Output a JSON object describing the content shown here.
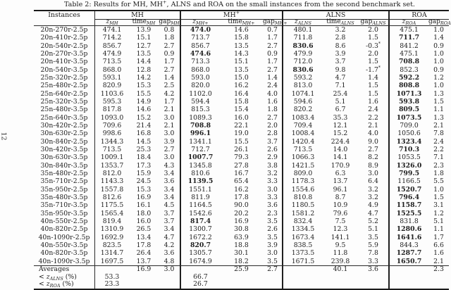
{
  "page": {
    "number": "12"
  },
  "caption": {
    "prefix": "Table 2: Results for MH, MH",
    "sup": "+",
    "suffix": ", ALNS and ROA on the small instances from the second benchmark set."
  },
  "colors": {
    "text": "#1d1d1d",
    "rule": "#2a2a2a",
    "background": "#fdfdfd"
  },
  "table": {
    "groups": [
      {
        "label": "Instances",
        "sup": ""
      },
      {
        "label": "MH",
        "sup": ""
      },
      {
        "label": "MH",
        "sup": "+"
      },
      {
        "label": "ALNS",
        "sup": ""
      },
      {
        "label": "ROA",
        "sup": ""
      }
    ],
    "column_ids": [
      "instance",
      "z-mh",
      "time-mh",
      "gap-mh",
      "z-mh-plus",
      "time-mh-plus",
      "gap-mh-plus",
      "z-alns",
      "time-alns",
      "gap-alns",
      "z-roa",
      "gap-roa"
    ],
    "columns": [
      {
        "base": "z",
        "sub": "MH",
        "italic": true
      },
      {
        "base": "time",
        "sub": "MH",
        "italic": false
      },
      {
        "base": "gap",
        "sub": "MH",
        "italic": false
      },
      {
        "base": "z",
        "sub": "MH+",
        "italic": true
      },
      {
        "base": "time",
        "sub": "MH+",
        "italic": false
      },
      {
        "base": "gap",
        "sub": "MH+",
        "italic": false
      },
      {
        "base": "z",
        "sub": "ALNS",
        "italic": true
      },
      {
        "base": "time",
        "sub": "ALNS",
        "italic": false
      },
      {
        "base": "gap",
        "sub": "ALNS",
        "italic": false
      },
      {
        "base": "z",
        "sub": "ROA",
        "italic": true
      },
      {
        "base": "gap",
        "sub": "ROA",
        "italic": false
      }
    ],
    "rows": [
      {
        "instance": "20n-270r-2.5p",
        "values": [
          "474.1",
          "13.9",
          "0.8",
          "474.0",
          "14.6",
          "0.7",
          "480.1",
          "3.2",
          "2.0",
          "475.1",
          "1.0"
        ],
        "bold": [
          3
        ]
      },
      {
        "instance": "20n-410r-2.5p",
        "values": [
          "714.2",
          "15.1",
          "1.8",
          "713.7",
          "15.8",
          "1.7",
          "711.8",
          "2.8",
          "1.5",
          "711.7",
          "1.4"
        ],
        "bold": [
          9
        ]
      },
      {
        "instance": "20n-540r-2.5p",
        "values": [
          "856.7",
          "12.7",
          "2.7",
          "856.7",
          "13.5",
          "2.7",
          "830.6",
          "8.6",
          "-0.3*",
          "841.2",
          "0.9"
        ],
        "bold": [
          6
        ]
      },
      {
        "instance": "20n-270r-3.5p",
        "values": [
          "474.9",
          "13.5",
          "0.9",
          "474.6",
          "14.3",
          "0.9",
          "479.9",
          "3.9",
          "2.0",
          "475.1",
          "1.0"
        ],
        "bold": [
          3
        ]
      },
      {
        "instance": "20n-410r-3.5p",
        "values": [
          "713.5",
          "14.4",
          "1.7",
          "713.3",
          "15.1",
          "1.7",
          "712.0",
          "3.7",
          "1.5",
          "708.8",
          "1.0"
        ],
        "bold": [
          9
        ]
      },
      {
        "instance": "20n-540r-3.5p",
        "values": [
          "868.0",
          "12.8",
          "2.7",
          "868.0",
          "13.5",
          "2.7",
          "830.6",
          "9.8",
          "-1.7*",
          "852.3",
          "0.9"
        ],
        "bold": [
          6
        ]
      },
      {
        "instance": "25n-320r-2.5p",
        "values": [
          "593.1",
          "14.2",
          "1.4",
          "593.0",
          "15.0",
          "1.4",
          "593.2",
          "4.7",
          "1.4",
          "592.2",
          "1.2"
        ],
        "bold": [
          9
        ]
      },
      {
        "instance": "25n-480r-2.5p",
        "values": [
          "820.9",
          "15.3",
          "2.5",
          "820.0",
          "16.2",
          "2.4",
          "813.0",
          "7.1",
          "1.5",
          "808.8",
          "1.0"
        ],
        "bold": [
          9
        ]
      },
      {
        "instance": "25n-640r-2.5p",
        "values": [
          "1103.6",
          "15.5",
          "4.2",
          "1102.0",
          "16.4",
          "4.0",
          "1074.1",
          "25.4",
          "1.5",
          "1071.3",
          "1.3"
        ],
        "bold": [
          9
        ]
      },
      {
        "instance": "25n-320r-3.5p",
        "values": [
          "595.3",
          "14.9",
          "1.7",
          "594.4",
          "15.8",
          "1.6",
          "594.6",
          "5.1",
          "1.6",
          "593.8",
          "1.5"
        ],
        "bold": [
          9
        ]
      },
      {
        "instance": "25n-480r-3.5p",
        "values": [
          "817.8",
          "14.6",
          "2.1",
          "815.3",
          "15.4",
          "1.8",
          "820.2",
          "6.7",
          "2.4",
          "809.5",
          "1.1"
        ],
        "bold": [
          9
        ]
      },
      {
        "instance": "25n-640r-3.5p",
        "values": [
          "1093.0",
          "15.2",
          "3.0",
          "1089.3",
          "16.0",
          "2.7",
          "1083.4",
          "35.3",
          "2.2",
          "1073.5",
          "1.3"
        ],
        "bold": [
          9
        ]
      },
      {
        "instance": "30n-420r-2.5p",
        "values": [
          "709.6",
          "21.4",
          "2.1",
          "708.8",
          "22.1",
          "2.0",
          "709.4",
          "12.1",
          "2.1",
          "709.0",
          "2.1"
        ],
        "bold": [
          3
        ]
      },
      {
        "instance": "30n-630r-2.5p",
        "values": [
          "998.6",
          "16.8",
          "3.0",
          "996.1",
          "19.0",
          "2.8",
          "1008.4",
          "15.2",
          "4.0",
          "1050.6",
          "7.8"
        ],
        "bold": [
          3
        ]
      },
      {
        "instance": "30n-840r-2.5p",
        "values": [
          "1344.3",
          "14.5",
          "3.9",
          "1341.1",
          "15.5",
          "3.7",
          "1420.4",
          "224.4",
          "9.0",
          "1323.4",
          "2.4"
        ],
        "bold": [
          9
        ]
      },
      {
        "instance": "30n-420r-3.5p",
        "values": [
          "713.5",
          "25.3",
          "2.7",
          "712.7",
          "26.1",
          "2.6",
          "713.5",
          "14.0",
          "2.7",
          "710.3",
          "2.2"
        ],
        "bold": [
          9
        ]
      },
      {
        "instance": "30n-630r-3.5p",
        "values": [
          "1009.1",
          "18.4",
          "3.0",
          "1007.7",
          "79.3",
          "2.9",
          "1066.3",
          "14.1",
          "8.2",
          "1053.5",
          "7.1"
        ],
        "bold": [
          3
        ]
      },
      {
        "instance": "30n-840r-3.5p",
        "values": [
          "1353.7",
          "17.3",
          "4.3",
          "1345.8",
          "27.8",
          "3.8",
          "1421.5",
          "170.9",
          "8.9",
          "1326.0",
          "2.3"
        ],
        "bold": [
          9
        ]
      },
      {
        "instance": "35n-480r-2.5p",
        "values": [
          "812.0",
          "15.9",
          "3.4",
          "810.6",
          "16.7",
          "3.2",
          "809.0",
          "6.3",
          "3.0",
          "799.5",
          "1.8"
        ],
        "bold": [
          9
        ]
      },
      {
        "instance": "35n-710r-2.5p",
        "values": [
          "1143.3",
          "24.5",
          "3.6",
          "1139.5",
          "65.4",
          "3.3",
          "1178.3",
          "13.7",
          "6.4",
          "1166.5",
          "5.5"
        ],
        "bold": [
          3
        ]
      },
      {
        "instance": "35n-950r-2.5p",
        "values": [
          "1557.8",
          "15.3",
          "3.4",
          "1551.1",
          "16.2",
          "3.0",
          "1554.6",
          "96.1",
          "3.2",
          "1520.7",
          "1.0"
        ],
        "bold": [
          9
        ]
      },
      {
        "instance": "35n-480r-3.5p",
        "values": [
          "812.6",
          "16.9",
          "3.4",
          "811.9",
          "17.8",
          "3.3",
          "810.8",
          "8.7",
          "3.2",
          "796.4",
          "1.5"
        ],
        "bold": [
          9
        ]
      },
      {
        "instance": "35n-710r-3.5p",
        "values": [
          "1175.5",
          "16.1",
          "4.5",
          "1164.5",
          "90.0",
          "3.6",
          "1180.5",
          "10.9",
          "4.9",
          "1158.7",
          "3.1"
        ],
        "bold": [
          9
        ]
      },
      {
        "instance": "35n-950r-3.5p",
        "values": [
          "1565.4",
          "18.0",
          "3.7",
          "1542.6",
          "20.2",
          "2.3",
          "1581.2",
          "79.6",
          "4.7",
          "1525.5",
          "1.2"
        ],
        "bold": [
          9
        ]
      },
      {
        "instance": "40n-550r-2.5p",
        "values": [
          "819.4",
          "16.0",
          "3.7",
          "817.4",
          "16.9",
          "3.5",
          "832.4",
          "7.5",
          "5.2",
          "831.8",
          "5.1"
        ],
        "bold": [
          3
        ]
      },
      {
        "instance": "40n-820r-2.5p",
        "values": [
          "1310.9",
          "26.5",
          "3.4",
          "1300.7",
          "30.8",
          "2.6",
          "1334.5",
          "12.3",
          "5.1",
          "1280.6",
          "1.1"
        ],
        "bold": [
          9
        ]
      },
      {
        "instance": "40n-1090r-2.5p",
        "values": [
          "1692.9",
          "13.4",
          "4.7",
          "1672.2",
          "63.9",
          "3.5",
          "1673.4",
          "141.1",
          "3.5",
          "1641.6",
          "1.7"
        ],
        "bold": [
          9
        ]
      },
      {
        "instance": "40n-550r-3.5p",
        "values": [
          "823.5",
          "17.8",
          "4.2",
          "820.7",
          "18.8",
          "3.9",
          "838.5",
          "9.5",
          "5.9",
          "844.3",
          "6.6"
        ],
        "bold": [
          3
        ]
      },
      {
        "instance": "40n-820r-3.5p",
        "values": [
          "1314.7",
          "26.4",
          "3.6",
          "1305.7",
          "30.1",
          "3.0",
          "1373.5",
          "11.8",
          "7.8",
          "1287.7",
          "1.6"
        ],
        "bold": [
          9
        ]
      },
      {
        "instance": "40n-1090r-3.5p",
        "values": [
          "1697.5",
          "13.7",
          "4.8",
          "1674.9",
          "18.2",
          "3.5",
          "1671.5",
          "239.8",
          "3.3",
          "1650.7",
          "2.1"
        ],
        "bold": [
          9
        ]
      }
    ],
    "footer": [
      {
        "label": {
          "pre": "Averages",
          "sym": "",
          "sub": "",
          "post": ""
        },
        "values": [
          "",
          "16.9",
          "3.0",
          "",
          "25.9",
          "2.7",
          "",
          "40.1",
          "3.6",
          "",
          "2.3"
        ]
      },
      {
        "label": {
          "pre": "< ",
          "sym": "z",
          "sub": "ALNS",
          "post": " (%)"
        },
        "values": [
          "53.3",
          "",
          "",
          "66.7",
          "",
          "",
          "",
          "",
          "",
          "",
          ""
        ]
      },
      {
        "label": {
          "pre": "< ",
          "sym": "z",
          "sub": "ROA",
          "post": " (%)"
        },
        "values": [
          "23.3",
          "",
          "",
          "26.7",
          "",
          "",
          "",
          "",
          "",
          "",
          ""
        ]
      }
    ]
  }
}
